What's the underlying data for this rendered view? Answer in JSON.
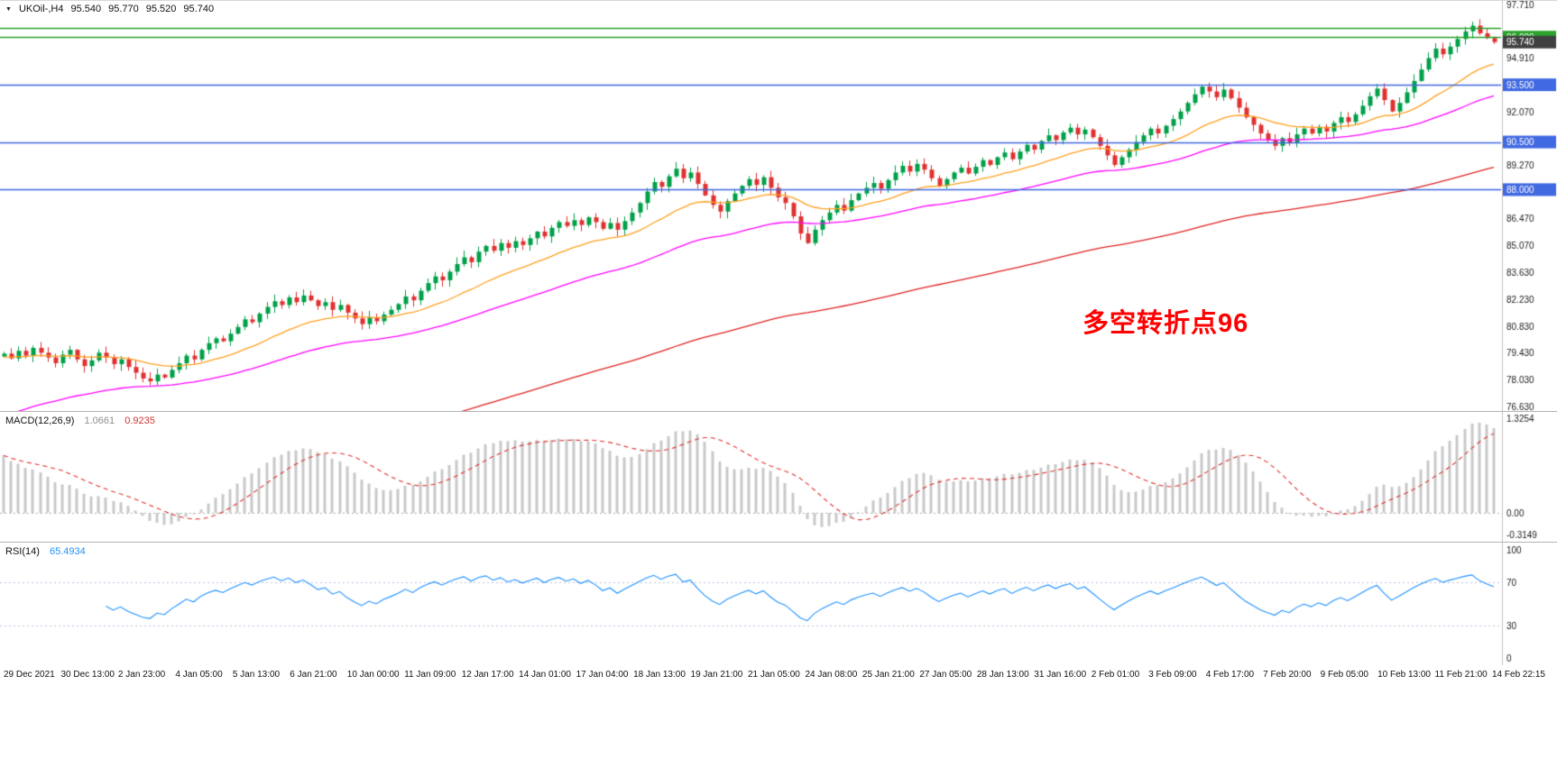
{
  "style": {
    "background": "#FFFFFF",
    "up_color": "#00A049",
    "down_color": "#E03131",
    "hline_green": "#2BA32B",
    "hline_blue": "#4169E1",
    "current_price_badge": "#404040",
    "macd_histogram": "#C8C8C8",
    "macd_zero_line": "#B0B0B0",
    "macd_signal": "#E03030",
    "rsi_line": "#1E90FF",
    "rsi_levels": "#B8C4DE",
    "text": "#1A1A1A",
    "separator": "#C0C0C0"
  },
  "header": {
    "symbol_timeframe": "UKOil-,H4"
  },
  "icons": {
    "chart_menu": "▼"
  },
  "chart_data": {
    "type": "candlestick",
    "title": "UKOil-,H4",
    "symbol": "UKOil-",
    "timeframe": "H4",
    "ohlc_display": {
      "open": "95.540",
      "high": "95.770",
      "low": "95.520",
      "close": "95.740"
    },
    "price_axis": {
      "min": 76.63,
      "max": 97.71,
      "labels": [
        97.71,
        94.91,
        92.07,
        89.27,
        86.47,
        85.07,
        83.63,
        82.23,
        80.83,
        79.43,
        78.03,
        76.63
      ]
    },
    "first_open": 79.25,
    "closes": [
      79.4,
      79.15,
      79.55,
      79.3,
      79.7,
      79.45,
      79.2,
      78.9,
      79.35,
      79.6,
      79.1,
      78.75,
      79.05,
      79.45,
      79.2,
      78.85,
      79.1,
      78.7,
      78.4,
      78.1,
      77.95,
      78.3,
      78.15,
      78.55,
      78.9,
      79.3,
      79.1,
      79.6,
      79.95,
      80.2,
      80.05,
      80.45,
      80.8,
      81.2,
      81.05,
      81.5,
      81.85,
      82.15,
      81.95,
      82.35,
      82.1,
      82.45,
      82.2,
      81.9,
      82.1,
      81.7,
      81.95,
      81.55,
      81.25,
      80.95,
      81.3,
      81.1,
      81.45,
      81.7,
      82.0,
      82.4,
      82.2,
      82.7,
      83.1,
      83.45,
      83.25,
      83.7,
      84.1,
      84.45,
      84.2,
      84.75,
      85.05,
      84.8,
      85.2,
      84.95,
      85.3,
      85.1,
      85.45,
      85.8,
      85.55,
      86.0,
      86.3,
      86.1,
      86.4,
      86.15,
      86.55,
      86.3,
      85.95,
      86.25,
      85.9,
      86.35,
      86.8,
      87.3,
      87.9,
      88.4,
      88.15,
      88.7,
      89.1,
      88.6,
      88.9,
      88.3,
      87.7,
      87.2,
      86.85,
      87.4,
      87.8,
      88.2,
      88.55,
      88.25,
      88.65,
      88.1,
      87.6,
      87.3,
      86.6,
      85.7,
      85.2,
      85.9,
      86.4,
      86.8,
      87.2,
      86.9,
      87.45,
      87.8,
      88.1,
      88.35,
      88.05,
      88.5,
      88.9,
      89.25,
      88.95,
      89.35,
      89.05,
      88.6,
      88.2,
      88.55,
      88.9,
      89.15,
      88.85,
      89.2,
      89.55,
      89.3,
      89.7,
      89.95,
      89.6,
      90.0,
      90.35,
      90.1,
      90.55,
      90.85,
      90.6,
      91.0,
      91.25,
      90.9,
      91.15,
      90.75,
      90.3,
      89.8,
      89.3,
      89.7,
      90.1,
      90.5,
      90.85,
      91.2,
      90.95,
      91.35,
      91.7,
      92.1,
      92.55,
      93.0,
      93.4,
      93.15,
      92.85,
      93.25,
      92.8,
      92.3,
      91.8,
      91.4,
      90.95,
      90.6,
      90.3,
      90.7,
      90.45,
      90.9,
      91.2,
      90.95,
      91.3,
      91.05,
      91.5,
      91.8,
      91.55,
      91.95,
      92.4,
      92.9,
      93.3,
      92.7,
      92.1,
      92.55,
      93.1,
      93.7,
      94.3,
      94.9,
      95.4,
      95.1,
      95.5,
      95.9,
      96.3,
      96.6,
      96.2,
      95.95,
      95.74
    ],
    "moving_averages": [
      {
        "name": "ma-fast",
        "period": 20,
        "seed": 79.2,
        "color": "#FFA01E"
      },
      {
        "name": "ma-medium",
        "period": 50,
        "seed": 76.0,
        "color": "#FF00FF"
      },
      {
        "name": "ma-slow",
        "period": 140,
        "seed": 69.5,
        "color": "#E02222"
      }
    ],
    "horizontal_lines": [
      {
        "price": 96.46,
        "color": "#2BA32B",
        "badge": null
      },
      {
        "price": 96.0,
        "color": "#2BA32B",
        "badge": "96.000"
      },
      {
        "price": 93.5,
        "color": "#4169E1",
        "badge": "93.500"
      },
      {
        "price": 90.5,
        "color": "#4169E1",
        "badge": "90.500"
      },
      {
        "price": 88.0,
        "color": "#4169E1",
        "badge": "88.000"
      }
    ],
    "current_price": {
      "value": 95.74,
      "badge": "95.740"
    },
    "annotation": {
      "text": "多空转折点96",
      "color": "#FF0000"
    },
    "macd": {
      "label": "MACD(12,26,9)",
      "value_main": "1.0661",
      "value_signal": "0.9235",
      "fast": 12,
      "slow": 26,
      "signal": 9,
      "seed_offset": 0.85,
      "axis_labels": [
        "1.3254",
        "0.00",
        "-0.3149"
      ]
    },
    "rsi": {
      "label": "RSI(14)",
      "value": "65.4934",
      "period": 14,
      "levels": [
        70,
        30
      ],
      "axis_labels": [
        "100",
        "70",
        "30",
        "0"
      ]
    },
    "time_labels": [
      "29 Dec 2021",
      "30 Dec 13:00",
      "2 Jan 23:00",
      "4 Jan 05:00",
      "5 Jan 13:00",
      "6 Jan 21:00",
      "10 Jan 00:00",
      "11 Jan 09:00",
      "12 Jan 17:00",
      "14 Jan 01:00",
      "17 Jan 04:00",
      "18 Jan 13:00",
      "19 Jan 21:00",
      "21 Jan 05:00",
      "24 Jan 08:00",
      "25 Jan 21:00",
      "27 Jan 05:00",
      "28 Jan 13:00",
      "31 Jan 16:00",
      "2 Feb 01:00",
      "3 Feb 09:00",
      "4 Feb 17:00",
      "7 Feb 20:00",
      "9 Feb 05:00",
      "10 Feb 13:00",
      "11 Feb 21:00",
      "14 Feb 22:15"
    ]
  }
}
